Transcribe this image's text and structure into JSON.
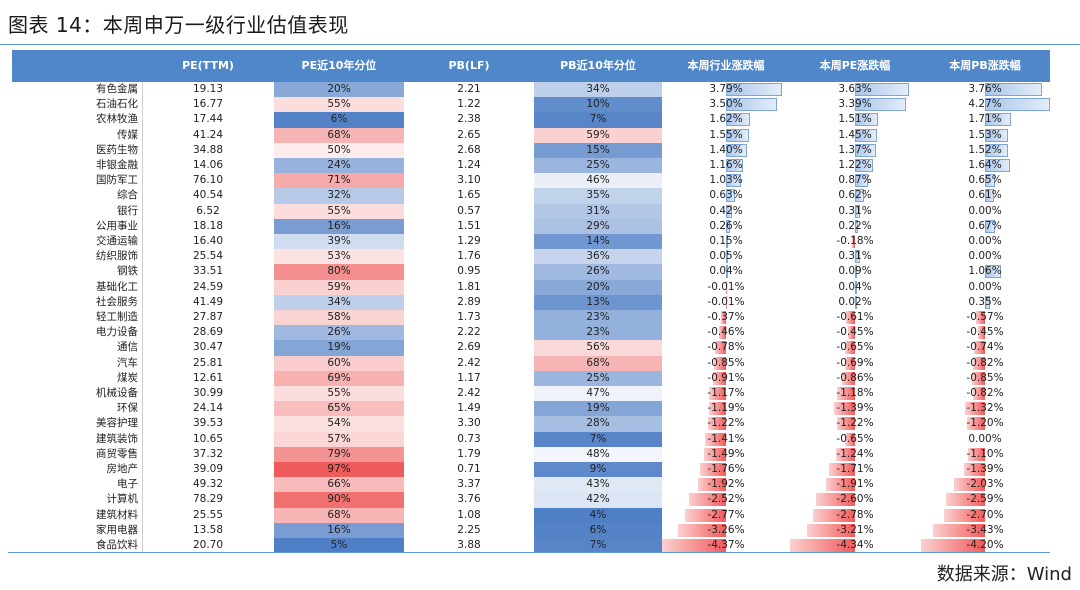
{
  "title": "图表 14：本周申万一级行业估值表现",
  "headers": [
    "",
    "PE(TTM)",
    "PE近10年分位",
    "PB(LF)",
    "PB近10年分位",
    "本周行业涨跌幅",
    "本周PE涨跌幅",
    "本周PB涨跌幅"
  ],
  "colors": {
    "header_bg": "#4f87c8",
    "blue_strong": "#4f7fc6",
    "red_strong": "#ef5b5b",
    "rule": "#5b9bd5"
  },
  "rows": [
    {
      "industry": "有色金属",
      "pe": "19.13",
      "pe_pct": "20%",
      "pb": "2.21",
      "pb_pct": "34%",
      "chg": "3.79%",
      "pe_chg": "3.63%",
      "pb_chg": "3.76%"
    },
    {
      "industry": "石油石化",
      "pe": "16.77",
      "pe_pct": "55%",
      "pb": "1.22",
      "pb_pct": "10%",
      "chg": "3.50%",
      "pe_chg": "3.39%",
      "pb_chg": "4.27%"
    },
    {
      "industry": "农林牧渔",
      "pe": "17.44",
      "pe_pct": "6%",
      "pb": "2.38",
      "pb_pct": "7%",
      "chg": "1.62%",
      "pe_chg": "1.51%",
      "pb_chg": "1.71%"
    },
    {
      "industry": "传媒",
      "pe": "41.24",
      "pe_pct": "68%",
      "pb": "2.65",
      "pb_pct": "59%",
      "chg": "1.55%",
      "pe_chg": "1.45%",
      "pb_chg": "1.53%"
    },
    {
      "industry": "医药生物",
      "pe": "34.88",
      "pe_pct": "50%",
      "pb": "2.68",
      "pb_pct": "15%",
      "chg": "1.40%",
      "pe_chg": "1.37%",
      "pb_chg": "1.52%"
    },
    {
      "industry": "非银金融",
      "pe": "14.06",
      "pe_pct": "24%",
      "pb": "1.24",
      "pb_pct": "25%",
      "chg": "1.16%",
      "pe_chg": "1.22%",
      "pb_chg": "1.64%"
    },
    {
      "industry": "国防军工",
      "pe": "76.10",
      "pe_pct": "71%",
      "pb": "3.10",
      "pb_pct": "46%",
      "chg": "1.03%",
      "pe_chg": "0.87%",
      "pb_chg": "0.65%"
    },
    {
      "industry": "综合",
      "pe": "40.54",
      "pe_pct": "32%",
      "pb": "1.65",
      "pb_pct": "35%",
      "chg": "0.63%",
      "pe_chg": "0.62%",
      "pb_chg": "0.61%"
    },
    {
      "industry": "银行",
      "pe": "6.52",
      "pe_pct": "55%",
      "pb": "0.57",
      "pb_pct": "31%",
      "chg": "0.42%",
      "pe_chg": "0.31%",
      "pb_chg": "0.00%"
    },
    {
      "industry": "公用事业",
      "pe": "18.18",
      "pe_pct": "16%",
      "pb": "1.51",
      "pb_pct": "29%",
      "chg": "0.26%",
      "pe_chg": "0.22%",
      "pb_chg": "0.67%"
    },
    {
      "industry": "交通运输",
      "pe": "16.40",
      "pe_pct": "39%",
      "pb": "1.29",
      "pb_pct": "14%",
      "chg": "0.15%",
      "pe_chg": "-0.18%",
      "pb_chg": "0.00%"
    },
    {
      "industry": "纺织服饰",
      "pe": "25.54",
      "pe_pct": "53%",
      "pb": "1.76",
      "pb_pct": "36%",
      "chg": "0.05%",
      "pe_chg": "0.31%",
      "pb_chg": "0.00%"
    },
    {
      "industry": "钢铁",
      "pe": "33.51",
      "pe_pct": "80%",
      "pb": "0.95",
      "pb_pct": "26%",
      "chg": "0.04%",
      "pe_chg": "0.09%",
      "pb_chg": "1.06%"
    },
    {
      "industry": "基础化工",
      "pe": "24.59",
      "pe_pct": "59%",
      "pb": "1.81",
      "pb_pct": "20%",
      "chg": "-0.01%",
      "pe_chg": "0.04%",
      "pb_chg": "0.00%"
    },
    {
      "industry": "社会服务",
      "pe": "41.49",
      "pe_pct": "34%",
      "pb": "2.89",
      "pb_pct": "13%",
      "chg": "-0.01%",
      "pe_chg": "0.02%",
      "pb_chg": "0.35%"
    },
    {
      "industry": "轻工制造",
      "pe": "27.87",
      "pe_pct": "58%",
      "pb": "1.73",
      "pb_pct": "23%",
      "chg": "-0.37%",
      "pe_chg": "-0.61%",
      "pb_chg": "-0.57%"
    },
    {
      "industry": "电力设备",
      "pe": "28.69",
      "pe_pct": "26%",
      "pb": "2.22",
      "pb_pct": "23%",
      "chg": "-0.46%",
      "pe_chg": "-0.45%",
      "pb_chg": "-0.45%"
    },
    {
      "industry": "通信",
      "pe": "30.47",
      "pe_pct": "19%",
      "pb": "2.69",
      "pb_pct": "56%",
      "chg": "-0.78%",
      "pe_chg": "-0.65%",
      "pb_chg": "-0.74%"
    },
    {
      "industry": "汽车",
      "pe": "25.81",
      "pe_pct": "60%",
      "pb": "2.42",
      "pb_pct": "68%",
      "chg": "-0.85%",
      "pe_chg": "-0.69%",
      "pb_chg": "-0.82%"
    },
    {
      "industry": "煤炭",
      "pe": "12.61",
      "pe_pct": "69%",
      "pb": "1.17",
      "pb_pct": "25%",
      "chg": "-0.91%",
      "pe_chg": "-0.86%",
      "pb_chg": "-0.85%"
    },
    {
      "industry": "机械设备",
      "pe": "30.99",
      "pe_pct": "55%",
      "pb": "2.42",
      "pb_pct": "47%",
      "chg": "-1.17%",
      "pe_chg": "-1.18%",
      "pb_chg": "-0.82%"
    },
    {
      "industry": "环保",
      "pe": "24.14",
      "pe_pct": "65%",
      "pb": "1.49",
      "pb_pct": "19%",
      "chg": "-1.19%",
      "pe_chg": "-1.39%",
      "pb_chg": "-1.32%"
    },
    {
      "industry": "美容护理",
      "pe": "39.53",
      "pe_pct": "54%",
      "pb": "3.30",
      "pb_pct": "28%",
      "chg": "-1.22%",
      "pe_chg": "-1.22%",
      "pb_chg": "-1.20%"
    },
    {
      "industry": "建筑装饰",
      "pe": "10.65",
      "pe_pct": "57%",
      "pb": "0.73",
      "pb_pct": "7%",
      "chg": "-1.41%",
      "pe_chg": "-0.65%",
      "pb_chg": "0.00%"
    },
    {
      "industry": "商贸零售",
      "pe": "37.32",
      "pe_pct": "79%",
      "pb": "1.79",
      "pb_pct": "48%",
      "chg": "-1.49%",
      "pe_chg": "-1.24%",
      "pb_chg": "-1.10%"
    },
    {
      "industry": "房地产",
      "pe": "39.09",
      "pe_pct": "97%",
      "pb": "0.71",
      "pb_pct": "9%",
      "chg": "-1.76%",
      "pe_chg": "-1.71%",
      "pb_chg": "-1.39%"
    },
    {
      "industry": "电子",
      "pe": "49.32",
      "pe_pct": "66%",
      "pb": "3.37",
      "pb_pct": "43%",
      "chg": "-1.92%",
      "pe_chg": "-1.91%",
      "pb_chg": "-2.03%"
    },
    {
      "industry": "计算机",
      "pe": "78.29",
      "pe_pct": "90%",
      "pb": "3.76",
      "pb_pct": "42%",
      "chg": "-2.52%",
      "pe_chg": "-2.60%",
      "pb_chg": "-2.59%"
    },
    {
      "industry": "建筑材料",
      "pe": "25.55",
      "pe_pct": "68%",
      "pb": "1.08",
      "pb_pct": "4%",
      "chg": "-2.77%",
      "pe_chg": "-2.78%",
      "pb_chg": "-2.70%"
    },
    {
      "industry": "家用电器",
      "pe": "13.58",
      "pe_pct": "16%",
      "pb": "2.25",
      "pb_pct": "6%",
      "chg": "-3.26%",
      "pe_chg": "-3.21%",
      "pb_chg": "-3.43%"
    },
    {
      "industry": "食品饮料",
      "pe": "20.70",
      "pe_pct": "5%",
      "pb": "3.88",
      "pb_pct": "7%",
      "chg": "-4.37%",
      "pe_chg": "-4.34%",
      "pb_chg": "-4.20%"
    }
  ],
  "source": "数据来源：Wind"
}
